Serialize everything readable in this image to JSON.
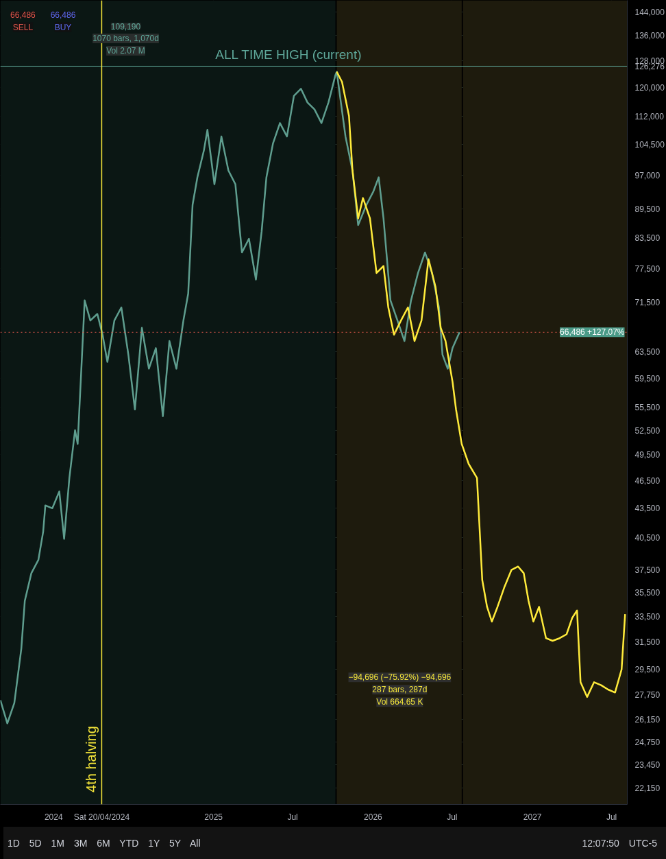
{
  "chart_data": {
    "type": "line",
    "log": "y",
    "grid": true,
    "xlim": [
      "2023-09-01",
      "2027-08-06"
    ],
    "ylim": [
      21300,
      148000
    ],
    "xticks": [
      {
        "value": "2024-01-01",
        "label": "2024"
      },
      {
        "value": "2024-04-20",
        "label": "Sat 20/04/2024"
      },
      {
        "value": "2025-01-01",
        "label": "2025"
      },
      {
        "value": "2025-07-01",
        "label": "Jul"
      },
      {
        "value": "2026-01-01",
        "label": "2026"
      },
      {
        "value": "2026-07-01",
        "label": "Jul"
      },
      {
        "value": "2027-01-01",
        "label": "2027"
      },
      {
        "value": "2027-07-01",
        "label": "Jul"
      }
    ],
    "yticks": [
      {
        "value": 144000,
        "label": "144,000"
      },
      {
        "value": 136000,
        "label": "136,000"
      },
      {
        "value": 128000,
        "label": "128,000"
      },
      {
        "value": 126276,
        "label": "126,276"
      },
      {
        "value": 120000,
        "label": "120,000"
      },
      {
        "value": 112000,
        "label": "112,000"
      },
      {
        "value": 104500,
        "label": "104,500"
      },
      {
        "value": 97000,
        "label": "97,000"
      },
      {
        "value": 89500,
        "label": "89,500"
      },
      {
        "value": 83500,
        "label": "83,500"
      },
      {
        "value": 77500,
        "label": "77,500"
      },
      {
        "value": 71500,
        "label": "71,500"
      },
      {
        "value": 63500,
        "label": "63,500"
      },
      {
        "value": 59500,
        "label": "59,500"
      },
      {
        "value": 55500,
        "label": "55,500"
      },
      {
        "value": 52500,
        "label": "52,500"
      },
      {
        "value": 49500,
        "label": "49,500"
      },
      {
        "value": 46500,
        "label": "46,500"
      },
      {
        "value": 43500,
        "label": "43,500"
      },
      {
        "value": 40500,
        "label": "40,500"
      },
      {
        "value": 37500,
        "label": "37,500"
      },
      {
        "value": 35500,
        "label": "35,500"
      },
      {
        "value": 33500,
        "label": "33,500"
      },
      {
        "value": 31500,
        "label": "31,500"
      },
      {
        "value": 29500,
        "label": "29,500"
      },
      {
        "value": 27750,
        "label": "27,750"
      },
      {
        "value": 26150,
        "label": "26,150"
      },
      {
        "value": 24750,
        "label": "24,750"
      },
      {
        "value": 23450,
        "label": "23,450"
      },
      {
        "value": 22150,
        "label": "22,150"
      }
    ],
    "bands": [
      {
        "axis": "x",
        "from": "2023-09-01",
        "to": "2025-10-07",
        "color": "#0b1714"
      },
      {
        "axis": "x",
        "from": "2025-10-10",
        "to": "2026-07-23",
        "color": "#1e1b0d"
      },
      {
        "axis": "x",
        "from": "2026-07-26",
        "to": "2027-08-06",
        "color": "#1e1b0d"
      }
    ],
    "ref_lines": [
      {
        "axis": "y",
        "value": 126276,
        "label": "ALL TIME HIGH (current)",
        "color": "#5fa89a",
        "line_style": "solid"
      },
      {
        "axis": "y",
        "value": 66486,
        "label": "66,486 +127.07%",
        "color": "#e0584c",
        "line_style": "dotted"
      },
      {
        "axis": "x",
        "value": "2024-04-20",
        "label": "4th halving",
        "color": "#f5e63a",
        "line_style": "solid"
      }
    ],
    "series": [
      {
        "color": "#5f9e8f",
        "x": [
          "2023-09-01",
          "2023-09-17",
          "2023-10-03",
          "2023-10-19",
          "2023-10-27",
          "2023-11-11",
          "2023-11-27",
          "2023-12-08",
          "2023-12-13",
          "2023-12-29",
          "2024-01-14",
          "2024-01-25",
          "2024-02-06",
          "2024-02-19",
          "2024-02-25",
          "2024-03-06",
          "2024-03-12",
          "2024-03-25",
          "2024-04-10",
          "2024-04-22",
          "2024-05-03",
          "2024-05-19",
          "2024-06-04",
          "2024-06-20",
          "2024-07-05",
          "2024-07-21",
          "2024-08-06",
          "2024-08-22",
          "2024-09-07",
          "2024-09-22",
          "2024-10-08",
          "2024-10-24",
          "2024-11-04",
          "2024-11-14",
          "2024-11-25",
          "2024-12-10",
          "2024-12-18",
          "2025-01-03",
          "2025-01-19",
          "2025-02-04",
          "2025-02-20",
          "2025-03-07",
          "2025-03-23",
          "2025-04-08",
          "2025-04-21",
          "2025-05-02",
          "2025-05-17",
          "2025-06-02",
          "2025-06-18",
          "2025-07-04",
          "2025-07-20",
          "2025-08-04",
          "2025-08-20",
          "2025-09-05",
          "2025-09-21",
          "2025-10-07",
          "2025-10-10",
          "2025-10-30",
          "2025-11-15",
          "2025-11-28",
          "2025-12-17",
          "2026-01-02",
          "2026-01-14",
          "2026-01-25",
          "2026-02-10",
          "2026-02-26",
          "2026-03-14",
          "2026-03-29",
          "2026-04-14",
          "2026-04-30",
          "2026-05-16",
          "2026-06-01",
          "2026-06-09",
          "2026-06-21",
          "2026-07-02",
          "2026-07-18"
        ],
        "values": [
          27400,
          25900,
          27200,
          31000,
          34800,
          37200,
          38400,
          41100,
          43800,
          43500,
          45300,
          40400,
          46800,
          52500,
          50800,
          63000,
          71800,
          68400,
          69500,
          66100,
          61900,
          68400,
          70600,
          63000,
          55200,
          67200,
          60900,
          64000,
          54300,
          65100,
          60900,
          68400,
          73000,
          90400,
          96600,
          103100,
          108300,
          95000,
          106600,
          98200,
          95000,
          80600,
          83300,
          75500,
          84700,
          96600,
          104800,
          110100,
          106600,
          117600,
          119600,
          115700,
          113800,
          110100,
          115700,
          123600,
          124600,
          106600,
          98200,
          86100,
          90400,
          93400,
          96600,
          87500,
          71800,
          68400,
          65100,
          71800,
          76700,
          80600,
          76700,
          70600,
          63000,
          60900,
          64000,
          66500
        ]
      },
      {
        "color": "#ffeb3b",
        "x": [
          "2025-10-10",
          "2025-10-22",
          "2025-11-07",
          "2025-11-15",
          "2025-11-28",
          "2025-12-09",
          "2025-12-25",
          "2026-01-09",
          "2026-01-25",
          "2026-02-05",
          "2026-02-18",
          "2026-03-06",
          "2026-03-22",
          "2026-04-06",
          "2026-04-22",
          "2026-05-08",
          "2026-05-24",
          "2026-06-05",
          "2026-06-16",
          "2026-07-02",
          "2026-07-10",
          "2026-07-23",
          "2026-08-08",
          "2026-08-27",
          "2026-09-08",
          "2026-09-19",
          "2026-09-30",
          "2026-10-13",
          "2026-10-29",
          "2026-11-14",
          "2026-11-29",
          "2026-12-12",
          "2026-12-23",
          "2027-01-03",
          "2027-01-16",
          "2027-02-01",
          "2027-02-16",
          "2027-03-04",
          "2027-03-20",
          "2027-04-02",
          "2027-04-13",
          "2027-04-21",
          "2027-05-06",
          "2027-05-22",
          "2027-06-07",
          "2027-06-23",
          "2027-07-09",
          "2027-07-24",
          "2027-08-01"
        ],
        "values": [
          124600,
          121600,
          112000,
          98200,
          87500,
          91900,
          87500,
          76700,
          78000,
          70600,
          66100,
          68400,
          70600,
          65100,
          68400,
          79300,
          74200,
          67200,
          65100,
          59000,
          55200,
          50800,
          48400,
          46800,
          36600,
          34300,
          33100,
          34300,
          36000,
          37500,
          37800,
          37200,
          34800,
          33100,
          34300,
          31800,
          31600,
          31800,
          32100,
          33400,
          34000,
          28600,
          27600,
          28600,
          28400,
          28100,
          27900,
          29500,
          33700
        ]
      }
    ],
    "annotations": [
      "−94,696 (−75.92%) −94,696\n287 bars, 287d\nVol 664.65 K",
      "109,190\n1070 bars, 1,070d\nVol 2.07 M",
      "66,486\nSELL",
      "66,486\nBUY",
      "1D 5D 1M 3M 6M YTD 1Y 5Y All",
      "12:07:50 UTC-5"
    ]
  }
}
